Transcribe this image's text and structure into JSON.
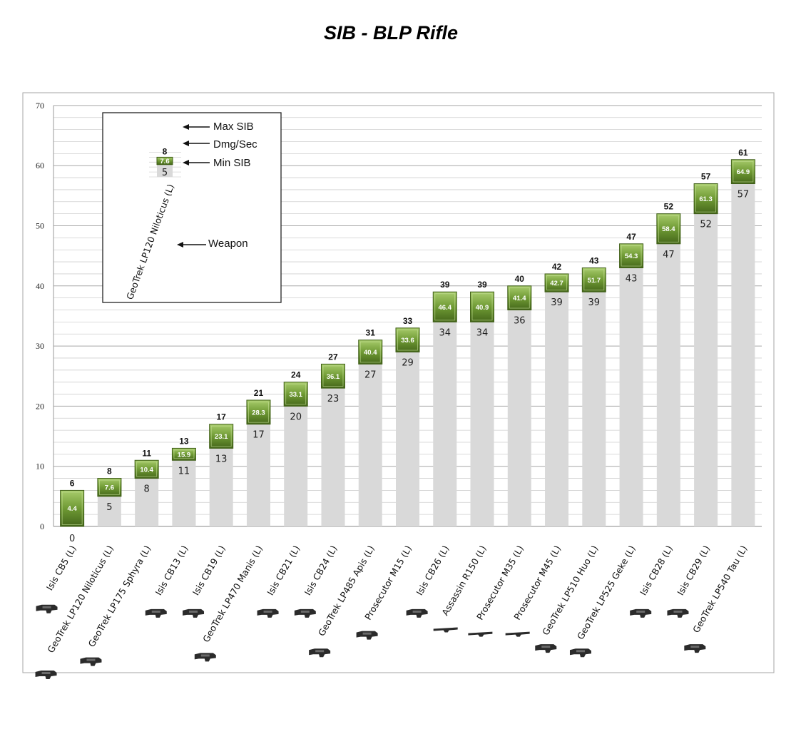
{
  "chart_data": {
    "type": "bar",
    "title": "SIB - BLP Rifle",
    "ylim": [
      0,
      70
    ],
    "yticks": [
      0,
      10,
      20,
      30,
      40,
      50,
      60,
      70
    ],
    "grid": true,
    "categories": [
      "Isis CB5 (L)",
      "GeoTrek LP120 Niloticus (L)",
      "GeoTrek LP175 Sphyra (L)",
      "Isis CB13 (L)",
      "Isis CB19 (L)",
      "GeoTrek LP470 Manis (L)",
      "Isis CB21 (L)",
      "Isis CB24 (L)",
      "GeoTrek LP485 Apis (L)",
      "Prosecutor M15 (L)",
      "Isis CB26 (L)",
      "Assassin R150 (L)",
      "Prosecutor M35 (L)",
      "Prosecutor M45 (L)",
      "GeoTrek LP510 Huo (L)",
      "GeoTrek LP525 Geke (L)",
      "Isis CB28 (L)",
      "Isis CB29 (L)",
      "GeoTrek LP540 Tau (L)"
    ],
    "series": [
      {
        "name": "Min SIB",
        "values": [
          0,
          5,
          8,
          11,
          13,
          17,
          20,
          23,
          27,
          29,
          34,
          34,
          36,
          39,
          39,
          43,
          47,
          52,
          57
        ]
      },
      {
        "name": "Max SIB",
        "values": [
          6,
          8,
          11,
          13,
          17,
          21,
          24,
          27,
          31,
          33,
          39,
          39,
          40,
          42,
          43,
          47,
          52,
          57,
          61
        ]
      },
      {
        "name": "Dmg/Sec",
        "values": [
          4.4,
          7.6,
          10.4,
          15.9,
          23.1,
          28.3,
          33.1,
          36.1,
          40.4,
          33.6,
          46.4,
          40.9,
          41.4,
          42.7,
          51.7,
          54.3,
          58.4,
          61.3,
          64.9
        ]
      }
    ],
    "weapon_icons": [
      "rifle-icon",
      "rifle-icon",
      "rifle-icon",
      "rifle-icon",
      "rifle-icon",
      "rifle-icon",
      "rifle-icon",
      "rifle-icon",
      "rifle-icon",
      "rifle-icon",
      "rifle-icon",
      "sniper-icon",
      "sniper-icon",
      "sniper-icon",
      "rifle-icon",
      "rifle-icon",
      "rifle-icon",
      "rifle-icon",
      "rifle-icon"
    ],
    "legend": {
      "placement": "top-left",
      "example_weapon": "GeoTrek LP120 Niloticus (L)",
      "example_min": 5,
      "example_max": 8,
      "example_dps": 7.6,
      "labels": {
        "max": "Max SIB",
        "dps": "Dmg/Sec",
        "min": "Min SIB",
        "weapon": "Weapon"
      }
    },
    "colors": {
      "min_bar": "#d9d9d9",
      "dps_box": "#6f9a34",
      "dps_box_light": "#9cc35c",
      "dps_box_dark": "#3f5e17",
      "grid": "#bfbfbf",
      "frame": "#a6a6a6",
      "icon": "#2b2b2b"
    }
  }
}
